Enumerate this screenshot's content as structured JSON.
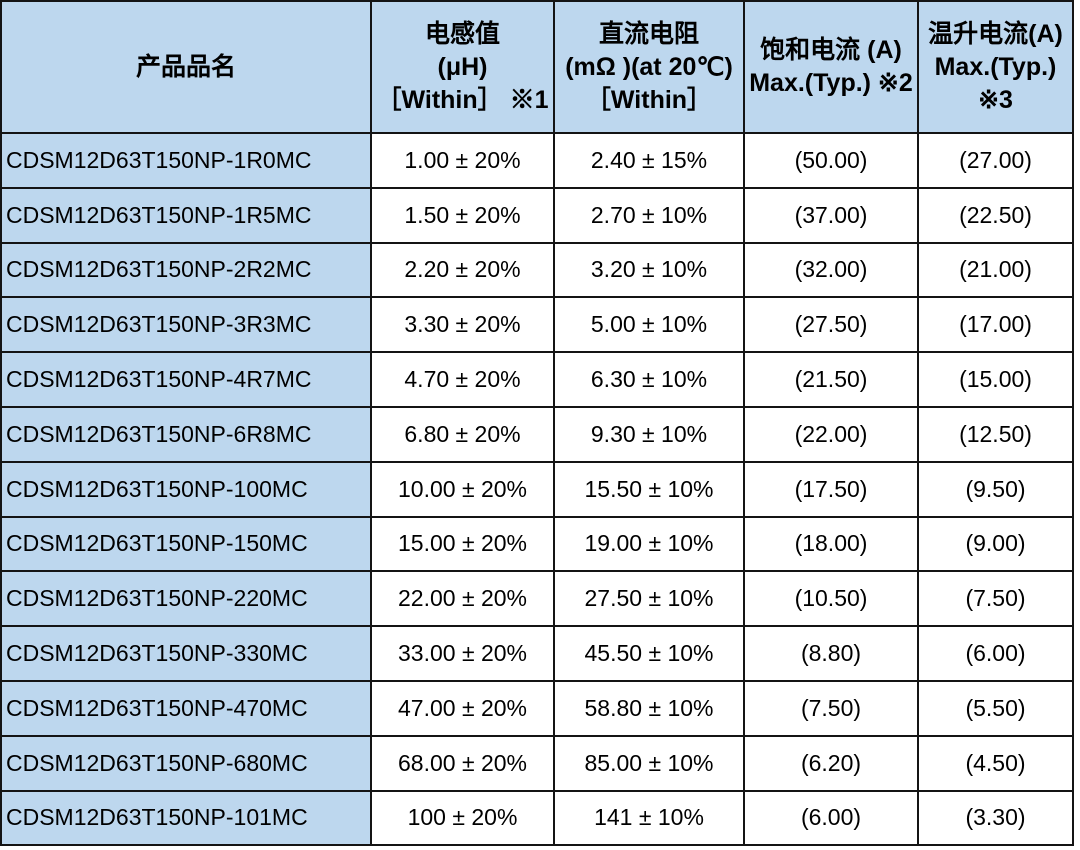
{
  "accent_colors": {
    "header_fill": "#bdd7ee",
    "row_label_fill": "#bdd7ee",
    "cell_fill": "#ffffff",
    "border": "#141414",
    "text": "#000000"
  },
  "table": {
    "headers": [
      "产品品名",
      "电感值\n(μH)\n［Within］ ※1",
      "直流电阻\n(mΩ )(at 20℃)\n［Within］",
      "饱和电流 (A)\nMax.(Typ.) ※2",
      "温升电流(A)\nMax.(Typ.)\n※3"
    ],
    "rows": [
      {
        "cells": [
          "CDSM12D63T150NP-1R0MC",
          "1.00 ± 20%",
          "2.40 ± 15%",
          "(50.00)",
          "(27.00)"
        ]
      },
      {
        "cells": [
          "CDSM12D63T150NP-1R5MC",
          "1.50 ± 20%",
          "2.70 ± 10%",
          "(37.00)",
          "(22.50)"
        ]
      },
      {
        "cells": [
          "CDSM12D63T150NP-2R2MC",
          "2.20 ± 20%",
          "3.20 ± 10%",
          "(32.00)",
          "(21.00)"
        ]
      },
      {
        "cells": [
          "CDSM12D63T150NP-3R3MC",
          "3.30 ± 20%",
          "5.00 ± 10%",
          "(27.50)",
          "(17.00)"
        ]
      },
      {
        "cells": [
          "CDSM12D63T150NP-4R7MC",
          "4.70 ± 20%",
          "6.30 ± 10%",
          "(21.50)",
          "(15.00)"
        ]
      },
      {
        "cells": [
          "CDSM12D63T150NP-6R8MC",
          "6.80 ± 20%",
          "9.30 ± 10%",
          "(22.00)",
          "(12.50)"
        ]
      },
      {
        "cells": [
          "CDSM12D63T150NP-100MC",
          "10.00 ± 20%",
          "15.50 ± 10%",
          "(17.50)",
          "(9.50)"
        ]
      },
      {
        "cells": [
          "CDSM12D63T150NP-150MC",
          "15.00 ± 20%",
          "19.00 ± 10%",
          "(18.00)",
          "(9.00)"
        ]
      },
      {
        "cells": [
          "CDSM12D63T150NP-220MC",
          "22.00 ± 20%",
          "27.50 ± 10%",
          "(10.50)",
          "(7.50)"
        ]
      },
      {
        "cells": [
          "CDSM12D63T150NP-330MC",
          "33.00 ± 20%",
          "45.50 ± 10%",
          "(8.80)",
          "(6.00)"
        ]
      },
      {
        "cells": [
          "CDSM12D63T150NP-470MC",
          "47.00 ± 20%",
          "58.80 ± 10%",
          "(7.50)",
          "(5.50)"
        ]
      },
      {
        "cells": [
          "CDSM12D63T150NP-680MC",
          "68.00 ± 20%",
          "85.00 ± 10%",
          "(6.20)",
          "(4.50)"
        ]
      },
      {
        "cells": [
          "CDSM12D63T150NP-101MC",
          "100 ± 20%",
          "141 ± 10%",
          "(6.00)",
          "(3.30)"
        ]
      }
    ]
  },
  "chart_data": {
    "type": "table",
    "title": "",
    "columns": [
      "产品品名",
      "电感值 (μH) ［Within］ ※1",
      "直流电阻 (mΩ )(at 20℃) ［Within］",
      "饱和电流 (A) Max.(Typ.) ※2",
      "温升电流(A) Max.(Typ.) ※3"
    ],
    "rows": [
      [
        "CDSM12D63T150NP-1R0MC",
        "1.00 ± 20%",
        "2.40 ± 15%",
        "(50.00)",
        "(27.00)"
      ],
      [
        "CDSM12D63T150NP-1R5MC",
        "1.50 ± 20%",
        "2.70 ± 10%",
        "(37.00)",
        "(22.50)"
      ],
      [
        "CDSM12D63T150NP-2R2MC",
        "2.20 ± 20%",
        "3.20 ± 10%",
        "(32.00)",
        "(21.00)"
      ],
      [
        "CDSM12D63T150NP-3R3MC",
        "3.30 ± 20%",
        "5.00 ± 10%",
        "(27.50)",
        "(17.00)"
      ],
      [
        "CDSM12D63T150NP-4R7MC",
        "4.70 ± 20%",
        "6.30 ± 10%",
        "(21.50)",
        "(15.00)"
      ],
      [
        "CDSM12D63T150NP-6R8MC",
        "6.80 ± 20%",
        "9.30 ± 10%",
        "(22.00)",
        "(12.50)"
      ],
      [
        "CDSM12D63T150NP-100MC",
        "10.00 ± 20%",
        "15.50 ± 10%",
        "(17.50)",
        "(9.50)"
      ],
      [
        "CDSM12D63T150NP-150MC",
        "15.00 ± 20%",
        "19.00 ± 10%",
        "(18.00)",
        "(9.00)"
      ],
      [
        "CDSM12D63T150NP-220MC",
        "22.00 ± 20%",
        "27.50 ± 10%",
        "(10.50)",
        "(7.50)"
      ],
      [
        "CDSM12D63T150NP-330MC",
        "33.00 ± 20%",
        "45.50 ± 10%",
        "(8.80)",
        "(6.00)"
      ],
      [
        "CDSM12D63T150NP-470MC",
        "47.00 ± 20%",
        "58.80 ± 10%",
        "(7.50)",
        "(5.50)"
      ],
      [
        "CDSM12D63T150NP-680MC",
        "68.00 ± 20%",
        "85.00 ± 10%",
        "(6.20)",
        "(4.50)"
      ],
      [
        "CDSM12D63T150NP-101MC",
        "100 ± 20%",
        "141 ± 10%",
        "(6.00)",
        "(3.30)"
      ]
    ]
  }
}
